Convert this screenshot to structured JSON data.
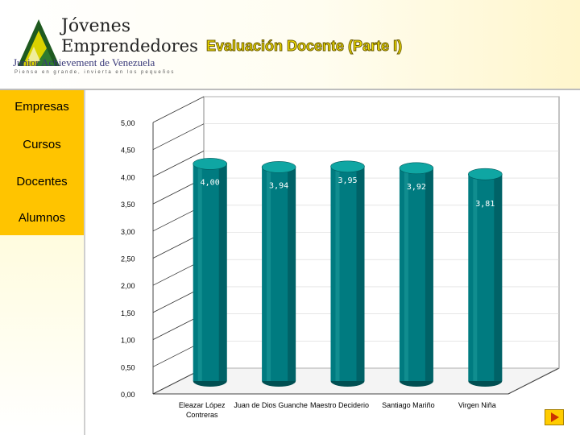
{
  "header": {
    "logo_title_line1": "Jóvenes",
    "logo_title_line2": "Emprendedores",
    "logo_org": "Junior Achievement de Venezuela",
    "logo_tagline": "Piense en grande, invierta en los pequeños",
    "page_title": "Evaluación Docente (Parte I)"
  },
  "sidebar": {
    "items": [
      {
        "label": "Empresas"
      },
      {
        "label": "Cursos"
      },
      {
        "label": "Docentes"
      },
      {
        "label": "Alumnos"
      }
    ]
  },
  "colors": {
    "bar": "#007b80",
    "bar_dark": "#004f52",
    "bar_top": "#0fa6a3",
    "nav_bg": "#ffc400",
    "title_fill": "#f3e000"
  },
  "chart_data": {
    "type": "bar",
    "style": "3d-cylinder",
    "categories": [
      "Eleazar López Contreras",
      "Juan de Dios Guanche",
      "Maestro Deciderio",
      "Santiago Mariño",
      "Virgen Niña"
    ],
    "values": [
      4.0,
      3.94,
      3.95,
      3.92,
      3.81
    ],
    "data_labels": [
      "4,00",
      "3,94",
      "3,95",
      "3,92",
      "3,81"
    ],
    "y_ticks": [
      "0,00",
      "0,50",
      "1,00",
      "1,50",
      "2,00",
      "2,50",
      "3,00",
      "3,50",
      "4,00",
      "4,50",
      "5,00"
    ],
    "ylim": [
      0,
      5
    ],
    "grid": true,
    "legend": "none",
    "title": "",
    "xlabel": "",
    "ylabel": ""
  },
  "nav": {
    "next_icon": "next-arrow-icon"
  }
}
